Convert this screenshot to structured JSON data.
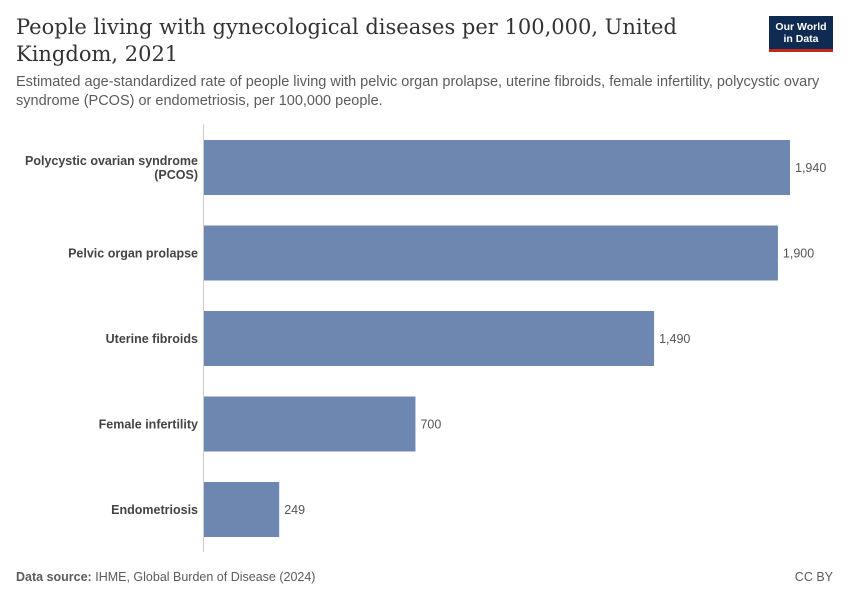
{
  "header": {
    "title": "People living with gynecological diseases per 100,000, United Kingdom, 2021",
    "subtitle": "Estimated age-standardized rate of people living with pelvic organ prolapse, uterine fibroids, female infertility, polycystic ovary syndrome (PCOS) or endometriosis, per 100,000 people.",
    "logo_line1": "Our World",
    "logo_line2": "in Data"
  },
  "footer": {
    "source_label": "Data source:",
    "source_text": "IHME, Global Burden of Disease (2024)",
    "license": "CC BY"
  },
  "colors": {
    "bar": "#6d87b0",
    "axis": "#cccccc",
    "logo_bg": "#0f2b52",
    "logo_accent": "#c4271a"
  },
  "chart_data": {
    "type": "bar",
    "orientation": "horizontal",
    "categories": [
      [
        "Polycystic ovarian syndrome",
        "(PCOS)"
      ],
      [
        "Pelvic organ prolapse"
      ],
      [
        "Uterine fibroids"
      ],
      [
        "Female infertility"
      ],
      [
        "Endometriosis"
      ]
    ],
    "values": [
      1940,
      1900,
      1490,
      700,
      249
    ],
    "value_labels": [
      "1,940",
      "1,900",
      "1,490",
      "700",
      "249"
    ],
    "xlim": [
      0,
      1940
    ],
    "grid": false
  }
}
